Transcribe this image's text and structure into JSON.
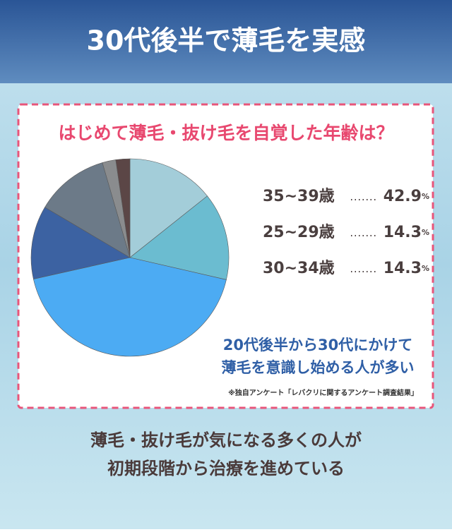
{
  "header": {
    "title": "30代後半で薄毛を実感"
  },
  "chart_data": {
    "type": "pie",
    "title": "はじめて薄毛・抜け毛を自覚した年齢は？",
    "categories": [
      "25~29歳",
      "30~34歳",
      "35~39歳",
      null,
      null,
      null,
      null
    ],
    "values": [
      14.3,
      14.3,
      42.9,
      12,
      12,
      2.2,
      2.3
    ],
    "value_labels": [
      "14.3%",
      "14.3%",
      "42.9%",
      null,
      null,
      null,
      null
    ],
    "colors": [
      "#a3cdd9",
      "#6bbcd0",
      "#4cabf3",
      "#3c62a2",
      "#6c7a88",
      "#8a8c8e",
      "#5b4646"
    ],
    "annotation": [
      "20代後半から30代にかけて",
      "薄毛を意識し始める人が多い"
    ],
    "source": "※独自アンケート「レバクリに関するアンケート調査結果」"
  },
  "footer": {
    "lines": [
      "薄毛・抜け毛が気になる多くの人が",
      "初期段階から治療を進めている"
    ]
  }
}
